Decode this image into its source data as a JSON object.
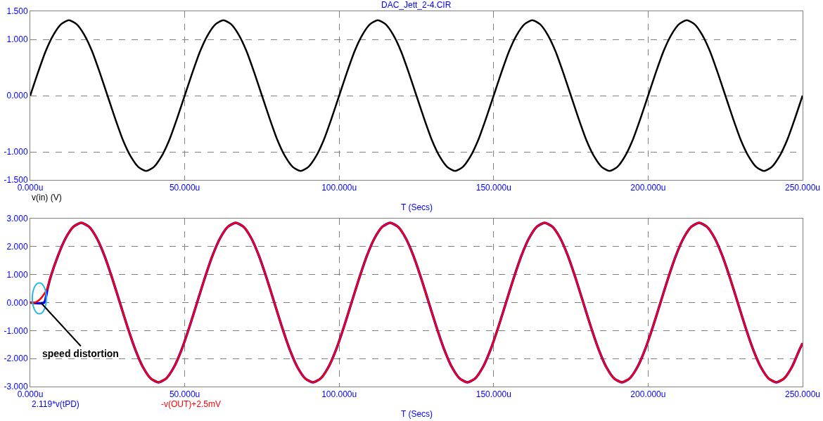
{
  "chart_data": [
    {
      "type": "line",
      "title": "DAC_Jett_2-4.CIR",
      "xlabel": "T (Secs)",
      "xlim": [
        0,
        250
      ],
      "xticks": [
        {
          "value": 0,
          "label": "0.000u"
        },
        {
          "value": 50,
          "label": "50.000u"
        },
        {
          "value": 100,
          "label": "100.000u"
        },
        {
          "value": 150,
          "label": "150.000u"
        },
        {
          "value": 200,
          "label": "200.000u"
        },
        {
          "value": 250,
          "label": "250.000u"
        }
      ],
      "ylim": [
        -1.5,
        1.5
      ],
      "yticks": [
        {
          "value": -1.5,
          "label": "-1.500"
        },
        {
          "value": -1,
          "label": "-1.000"
        },
        {
          "value": 0,
          "label": "0.000"
        },
        {
          "value": 1,
          "label": "1.000"
        },
        {
          "value": 1.5,
          "label": "1.500"
        }
      ],
      "grid": true,
      "marker": "none",
      "line_style": "solid",
      "series": [
        {
          "name": "v(in) (V)",
          "color": "#000000",
          "x": [
            0,
            2.5,
            5,
            7.5,
            10,
            12.5,
            15,
            17.5,
            20,
            22.5,
            25,
            27.5,
            30,
            32.5,
            35,
            37.5,
            40,
            42.5,
            45,
            47.5,
            50,
            52.5,
            55,
            57.5,
            60,
            62.5,
            65,
            67.5,
            70,
            72.5,
            75,
            77.5,
            80,
            82.5,
            85,
            87.5,
            90,
            92.5,
            95,
            97.5,
            100,
            102.5,
            105,
            107.5,
            110,
            112.5,
            115,
            117.5,
            120,
            122.5,
            125,
            127.5,
            130,
            132.5,
            135,
            137.5,
            140,
            142.5,
            145,
            147.5,
            150,
            152.5,
            155,
            157.5,
            160,
            162.5,
            165,
            167.5,
            170,
            172.5,
            175,
            177.5,
            180,
            182.5,
            185,
            187.5,
            190,
            192.5,
            195,
            197.5,
            200,
            202.5,
            205,
            207.5,
            210,
            212.5,
            215,
            217.5,
            220,
            222.5,
            225,
            227.5,
            230,
            232.5,
            235,
            237.5,
            240,
            242.5,
            245,
            247.5,
            250
          ],
          "values": [
            0,
            0.41,
            0.79,
            1.08,
            1.27,
            1.34,
            1.27,
            1.08,
            0.79,
            0.41,
            0,
            -0.41,
            -0.79,
            -1.08,
            -1.27,
            -1.34,
            -1.27,
            -1.08,
            -0.79,
            -0.41,
            0,
            0.41,
            0.79,
            1.08,
            1.27,
            1.34,
            1.27,
            1.08,
            0.79,
            0.41,
            0,
            -0.41,
            -0.79,
            -1.08,
            -1.27,
            -1.34,
            -1.27,
            -1.08,
            -0.79,
            -0.41,
            0,
            0.41,
            0.79,
            1.08,
            1.27,
            1.34,
            1.27,
            1.08,
            0.79,
            0.41,
            0,
            -0.41,
            -0.79,
            -1.08,
            -1.27,
            -1.34,
            -1.27,
            -1.08,
            -0.79,
            -0.41,
            0,
            0.41,
            0.79,
            1.08,
            1.27,
            1.34,
            1.27,
            1.08,
            0.79,
            0.41,
            0,
            -0.41,
            -0.79,
            -1.08,
            -1.27,
            -1.34,
            -1.27,
            -1.08,
            -0.79,
            -0.41,
            0,
            0.41,
            0.79,
            1.08,
            1.27,
            1.34,
            1.27,
            1.08,
            0.79,
            0.41,
            0,
            -0.41,
            -0.79,
            -1.08,
            -1.27,
            -1.34,
            -1.27,
            -1.08,
            -0.79,
            -0.41,
            0
          ]
        }
      ]
    },
    {
      "type": "line",
      "xlabel": "T (Secs)",
      "xlim": [
        0,
        250
      ],
      "xticks": [
        {
          "value": 0,
          "label": "0.000u"
        },
        {
          "value": 50,
          "label": "50.000u"
        },
        {
          "value": 100,
          "label": "100.000u"
        },
        {
          "value": 150,
          "label": "150.000u"
        },
        {
          "value": 200,
          "label": "200.000u"
        },
        {
          "value": 250,
          "label": "250.000u"
        }
      ],
      "ylim": [
        -3,
        3
      ],
      "yticks": [
        {
          "value": -3,
          "label": "-3.000"
        },
        {
          "value": -2,
          "label": "-2.000"
        },
        {
          "value": -1,
          "label": "-1.000"
        },
        {
          "value": 0,
          "label": "0.000"
        },
        {
          "value": 1,
          "label": "1.000"
        },
        {
          "value": 2,
          "label": "2.000"
        },
        {
          "value": 3,
          "label": "3.000"
        }
      ],
      "grid": true,
      "marker": "none",
      "line_style": "solid",
      "annotations": [
        {
          "text": "speed distortion",
          "x": 3.4,
          "y": 0
        }
      ],
      "series": [
        {
          "name": "2.119*v(tPD)",
          "color": "#0000ff",
          "x": [
            0,
            4.5,
            5.5,
            6.5,
            9,
            11.5,
            14,
            16.5,
            19,
            21.5,
            24,
            26.5,
            29,
            31.5,
            34,
            36.5,
            39,
            41.5,
            44,
            46.5,
            49,
            51.5,
            54,
            56.5,
            59,
            61.5,
            64,
            66.5,
            69,
            71.5,
            74,
            76.5,
            79,
            81.5,
            84,
            86.5,
            89,
            91.5,
            94,
            96.5,
            99,
            101.5,
            104,
            106.5,
            109,
            111.5,
            114,
            116.5,
            119,
            121.5,
            124,
            126.5,
            129,
            131.5,
            134,
            136.5,
            139,
            141.5,
            144,
            146.5,
            149,
            151.5,
            154,
            156.5,
            159,
            161.5,
            164,
            166.5,
            169,
            171.5,
            174,
            176.5,
            179,
            181.5,
            184,
            186.5,
            189,
            191.5,
            194,
            196.5,
            199,
            201.5,
            204,
            206.5,
            209,
            211.5,
            214,
            216.5,
            219,
            221.5,
            224,
            226.5,
            229,
            231.5,
            234,
            236.5,
            239,
            241.5,
            244,
            246.5,
            249,
            250
          ],
          "values": [
            0,
            0,
            0.45,
            0.88,
            1.68,
            2.31,
            2.71,
            2.85,
            2.71,
            2.31,
            1.68,
            0.88,
            0,
            -0.88,
            -1.68,
            -2.31,
            -2.71,
            -2.85,
            -2.71,
            -2.31,
            -1.68,
            -0.88,
            0,
            0.88,
            1.68,
            2.31,
            2.71,
            2.85,
            2.71,
            2.31,
            1.68,
            0.88,
            0,
            -0.88,
            -1.68,
            -2.31,
            -2.71,
            -2.85,
            -2.71,
            -2.31,
            -1.68,
            -0.88,
            0,
            0.88,
            1.68,
            2.31,
            2.71,
            2.85,
            2.71,
            2.31,
            1.68,
            0.88,
            0,
            -0.88,
            -1.68,
            -2.31,
            -2.71,
            -2.85,
            -2.71,
            -2.31,
            -1.68,
            -0.88,
            0,
            0.88,
            1.68,
            2.31,
            2.71,
            2.85,
            2.71,
            2.31,
            1.68,
            0.88,
            0,
            -0.88,
            -1.68,
            -2.31,
            -2.71,
            -2.85,
            -2.71,
            -2.31,
            -1.68,
            -0.88,
            0,
            0.88,
            1.68,
            2.31,
            2.71,
            2.85,
            2.71,
            2.31,
            1.68,
            0.88,
            0,
            -0.88,
            -1.68,
            -2.31,
            -2.71,
            -2.85,
            -2.71,
            -2.31,
            -1.68,
            -1.45
          ]
        },
        {
          "name": "-v(OUT)+2.5mV",
          "color": "#ff0000",
          "x": [
            0,
            1.5,
            3,
            4.5,
            5.5,
            6.5,
            9,
            11.5,
            14,
            16.5,
            19,
            21.5,
            24,
            26.5,
            29,
            31.5,
            34,
            36.5,
            39,
            41.5,
            44,
            46.5,
            49,
            51.5,
            54,
            56.5,
            59,
            61.5,
            64,
            66.5,
            69,
            71.5,
            74,
            76.5,
            79,
            81.5,
            84,
            86.5,
            89,
            91.5,
            94,
            96.5,
            99,
            101.5,
            104,
            106.5,
            109,
            111.5,
            114,
            116.5,
            119,
            121.5,
            124,
            126.5,
            129,
            131.5,
            134,
            136.5,
            139,
            141.5,
            144,
            146.5,
            149,
            151.5,
            154,
            156.5,
            159,
            161.5,
            164,
            166.5,
            169,
            171.5,
            174,
            176.5,
            179,
            181.5,
            184,
            186.5,
            189,
            191.5,
            194,
            196.5,
            199,
            201.5,
            204,
            206.5,
            209,
            211.5,
            214,
            216.5,
            219,
            221.5,
            224,
            226.5,
            229,
            231.5,
            234,
            236.5,
            239,
            241.5,
            244,
            246.5,
            249,
            250
          ],
          "values": [
            0,
            0,
            0.1,
            0.3,
            0.5,
            0.88,
            1.68,
            2.31,
            2.71,
            2.85,
            2.71,
            2.31,
            1.68,
            0.88,
            0,
            -0.88,
            -1.68,
            -2.31,
            -2.71,
            -2.85,
            -2.71,
            -2.31,
            -1.68,
            -0.88,
            0,
            0.88,
            1.68,
            2.31,
            2.71,
            2.85,
            2.71,
            2.31,
            1.68,
            0.88,
            0,
            -0.88,
            -1.68,
            -2.31,
            -2.71,
            -2.85,
            -2.71,
            -2.31,
            -1.68,
            -0.88,
            0,
            0.88,
            1.68,
            2.31,
            2.71,
            2.85,
            2.71,
            2.31,
            1.68,
            0.88,
            0,
            -0.88,
            -1.68,
            -2.31,
            -2.71,
            -2.85,
            -2.71,
            -2.31,
            -1.68,
            -0.88,
            0,
            0.88,
            1.68,
            2.31,
            2.71,
            2.85,
            2.71,
            2.31,
            1.68,
            0.88,
            0,
            -0.88,
            -1.68,
            -2.31,
            -2.71,
            -2.85,
            -2.71,
            -2.31,
            -1.68,
            -0.88,
            0,
            0.88,
            1.68,
            2.31,
            2.71,
            2.85,
            2.71,
            2.31,
            1.68,
            0.88,
            0,
            -0.88,
            -1.68,
            -2.31,
            -2.71,
            -2.85,
            -2.71,
            -2.31,
            -1.68,
            -1.45
          ]
        }
      ]
    }
  ]
}
